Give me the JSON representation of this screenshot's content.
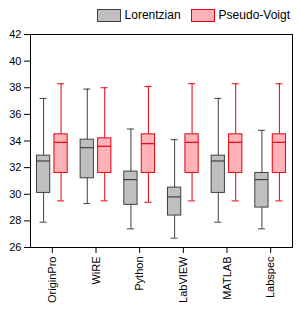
{
  "chart_data": {
    "type": "box",
    "categories": [
      "OriginPro",
      "WiRE",
      "Python",
      "LabVIEW",
      "MATLAB",
      "Labspec"
    ],
    "series": [
      {
        "name": "Lorentzian",
        "color": "#bfbfbf",
        "values": [
          {
            "low": 27.9,
            "q1": 30.1,
            "median": 32.5,
            "q3": 32.9,
            "high": 37.2
          },
          {
            "low": 29.3,
            "q1": 31.2,
            "median": 33.5,
            "q3": 34.1,
            "high": 37.9
          },
          {
            "low": 27.4,
            "q1": 29.2,
            "median": 31.1,
            "q3": 31.7,
            "high": 34.9
          },
          {
            "low": 26.7,
            "q1": 28.4,
            "median": 29.8,
            "q3": 30.5,
            "high": 34.1
          },
          {
            "low": 27.9,
            "q1": 30.1,
            "median": 32.5,
            "q3": 32.9,
            "high": 37.2
          },
          {
            "low": 27.4,
            "q1": 29.0,
            "median": 31.1,
            "q3": 31.6,
            "high": 34.8
          }
        ]
      },
      {
        "name": "Pseudo-Voigt",
        "color": "#ffb3b8",
        "values": [
          {
            "low": 29.5,
            "q1": 31.6,
            "median": 33.9,
            "q3": 34.5,
            "high": 38.3
          },
          {
            "low": 29.5,
            "q1": 31.6,
            "median": 33.6,
            "q3": 34.2,
            "high": 38.0
          },
          {
            "low": 29.4,
            "q1": 31.6,
            "median": 33.8,
            "q3": 34.5,
            "high": 38.1
          },
          {
            "low": 29.5,
            "q1": 31.6,
            "median": 33.9,
            "q3": 34.5,
            "high": 38.3
          },
          {
            "low": 29.5,
            "q1": 31.6,
            "median": 33.9,
            "q3": 34.5,
            "high": 38.3
          },
          {
            "low": 29.5,
            "q1": 31.6,
            "median": 33.9,
            "q3": 34.5,
            "high": 38.3
          }
        ]
      }
    ],
    "ylim": [
      26,
      42
    ],
    "yticks": [
      26,
      28,
      30,
      32,
      34,
      36,
      38,
      40,
      42
    ],
    "legend": "top-right",
    "grid": false
  }
}
